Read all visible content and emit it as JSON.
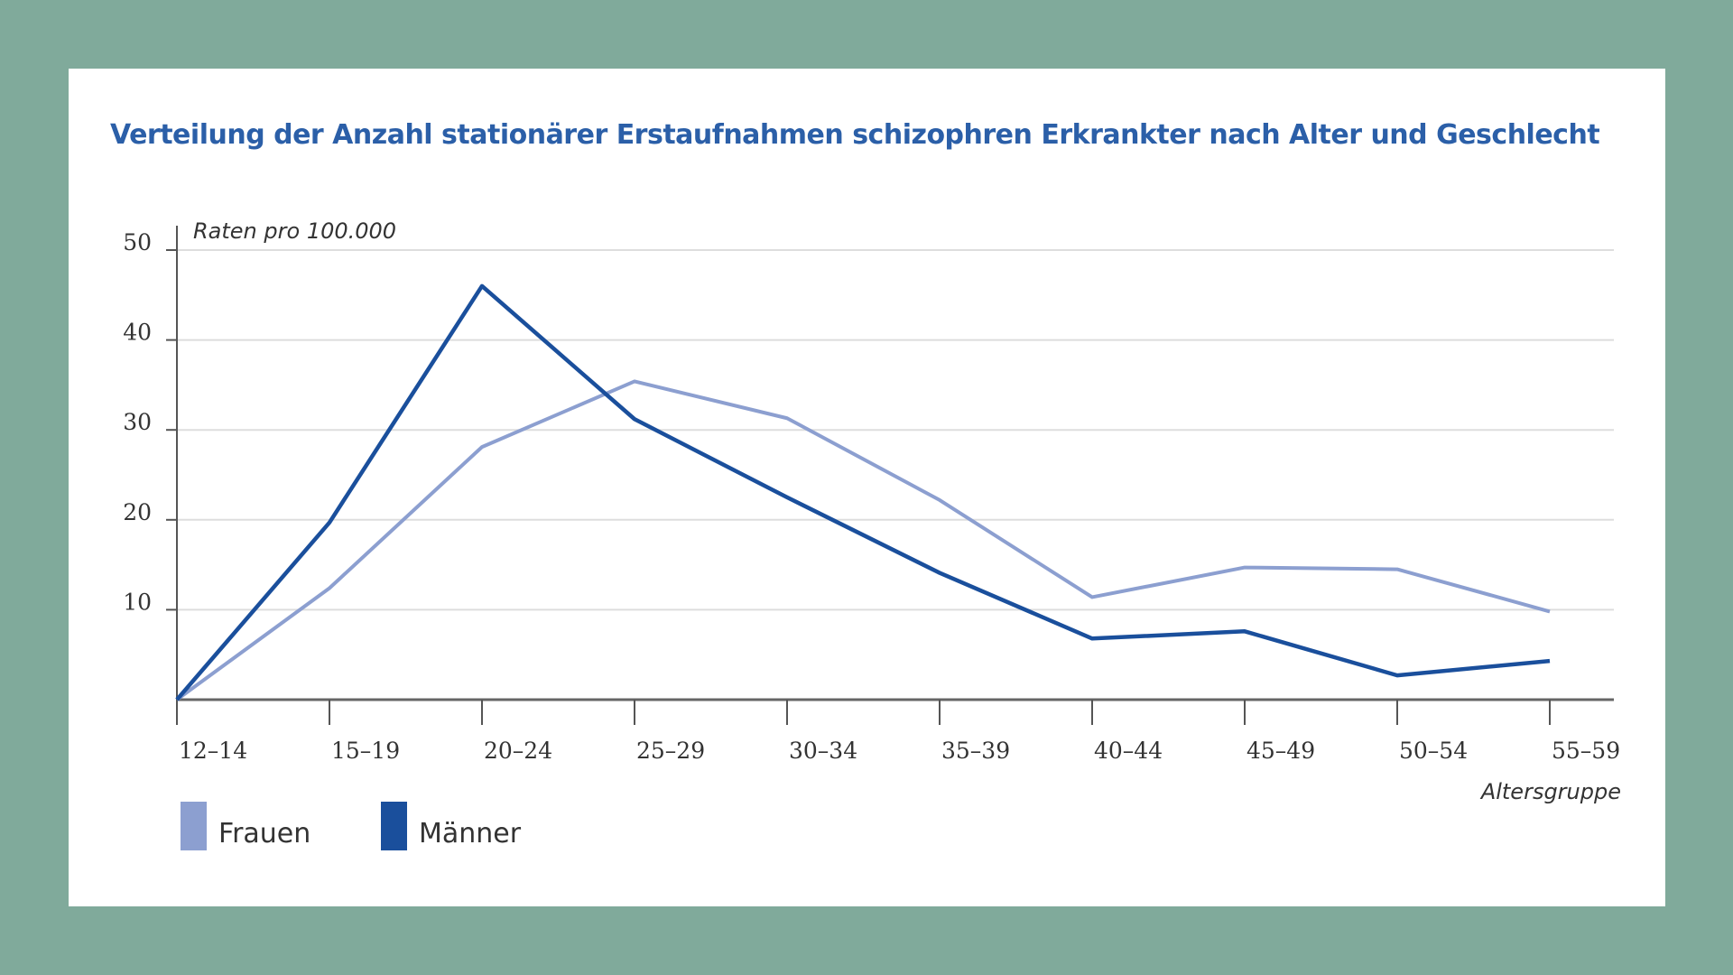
{
  "chart_data": {
    "type": "line",
    "title": "Verteilung der Anzahl stationärer Erstaufnahmen schizophren Erkrankter nach Alter und Geschlecht",
    "ylabel": "Raten pro 100.000",
    "xlabel": "Altersgruppe",
    "ylim": [
      0,
      50
    ],
    "yticks": [
      10,
      20,
      30,
      40,
      50
    ],
    "grid": true,
    "legend_position": "bottom-left",
    "categories": [
      "12–14",
      "15–19",
      "20–24",
      "25–29",
      "30–34",
      "35–39",
      "40–44",
      "45–49",
      "50–54",
      "55–59"
    ],
    "series": [
      {
        "name": "Frauen",
        "color": "#8c9fd0",
        "values": [
          0,
          12.4,
          28.1,
          35.4,
          31.3,
          22.2,
          11.4,
          14.7,
          14.5,
          9.8
        ]
      },
      {
        "name": "Männer",
        "color": "#1a4f9c",
        "values": [
          0,
          19.7,
          46,
          31.2,
          22.5,
          14.1,
          6.8,
          7.6,
          2.7,
          4.3
        ]
      }
    ]
  }
}
